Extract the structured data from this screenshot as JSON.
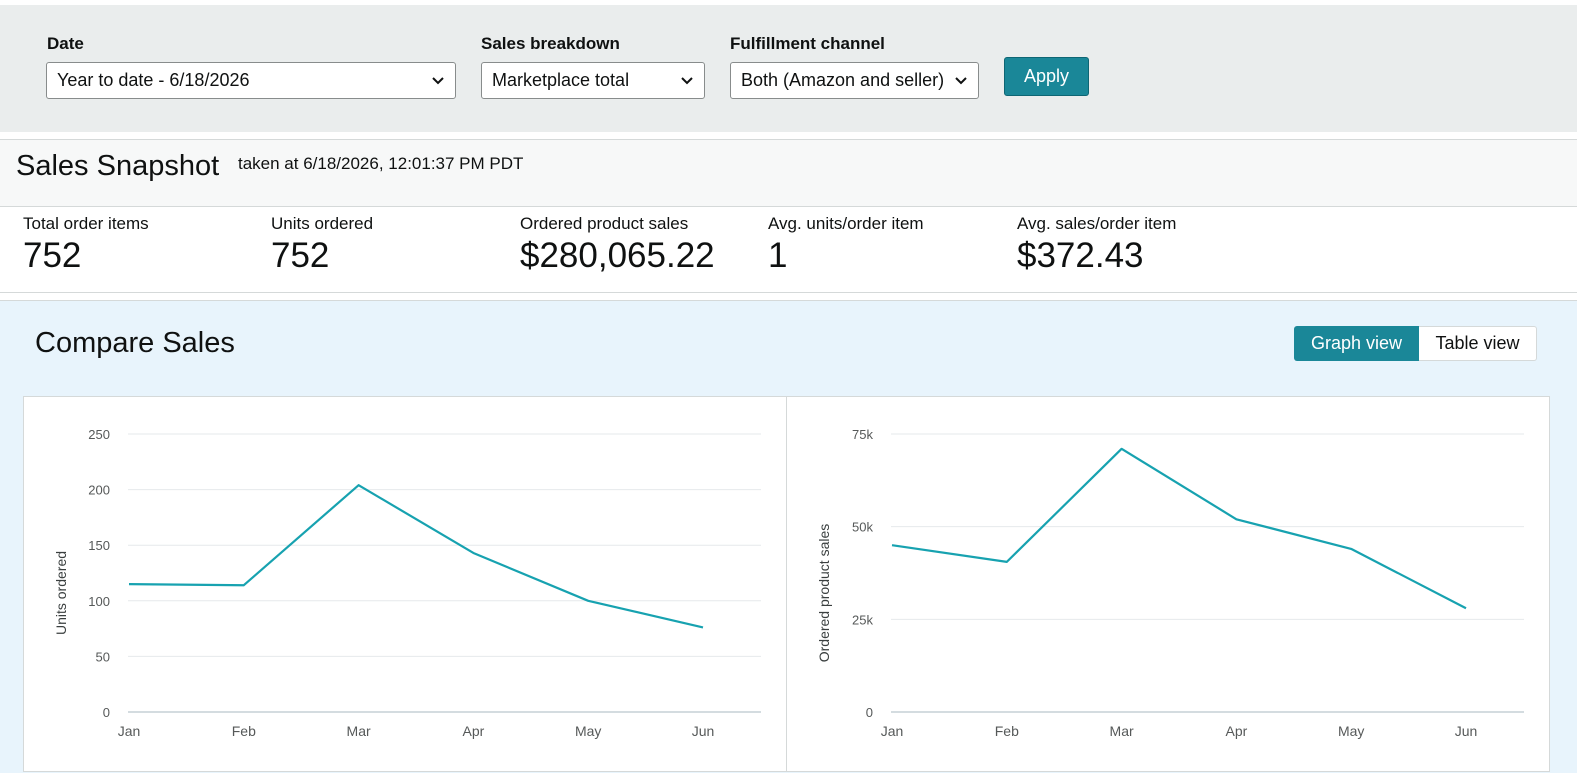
{
  "filters": {
    "date": {
      "label": "Date",
      "value": "Year to date - 6/18/2026"
    },
    "sales_breakdown": {
      "label": "Sales breakdown",
      "value": "Marketplace total"
    },
    "fulfillment": {
      "label": "Fulfillment channel",
      "value": "Both (Amazon and seller)"
    },
    "apply_label": "Apply"
  },
  "snapshot": {
    "title": "Sales Snapshot",
    "timestamp": "taken at 6/18/2026, 12:01:37 PM PDT",
    "metrics": [
      {
        "label": "Total order items",
        "value": "752"
      },
      {
        "label": "Units ordered",
        "value": "752"
      },
      {
        "label": "Ordered product sales",
        "value": "$280,065.22"
      },
      {
        "label": "Avg. units/order item",
        "value": "1"
      },
      {
        "label": "Avg. sales/order item",
        "value": "$372.43"
      }
    ]
  },
  "compare": {
    "title": "Compare Sales",
    "graph_view_label": "Graph view",
    "table_view_label": "Table view"
  },
  "colors": {
    "accent": "#1a8798",
    "line": "#17a2b0"
  },
  "chart_data": [
    {
      "type": "line",
      "categories": [
        "Jan",
        "Feb",
        "Mar",
        "Apr",
        "May",
        "Jun"
      ],
      "values": [
        115,
        114,
        204,
        143,
        100,
        76
      ],
      "ylabel": "Units ordered",
      "yticks": [
        "0",
        "50",
        "100",
        "150",
        "200",
        "250"
      ],
      "ylim": [
        0,
        250
      ],
      "grid": true
    },
    {
      "type": "line",
      "categories": [
        "Jan",
        "Feb",
        "Mar",
        "Apr",
        "May",
        "Jun"
      ],
      "values": [
        45000,
        40500,
        71000,
        52000,
        44000,
        28000
      ],
      "ylabel": "Ordered product sales",
      "yticks": [
        "0",
        "25k",
        "50k",
        "75k"
      ],
      "ylim": [
        0,
        75000
      ],
      "grid": true
    }
  ]
}
